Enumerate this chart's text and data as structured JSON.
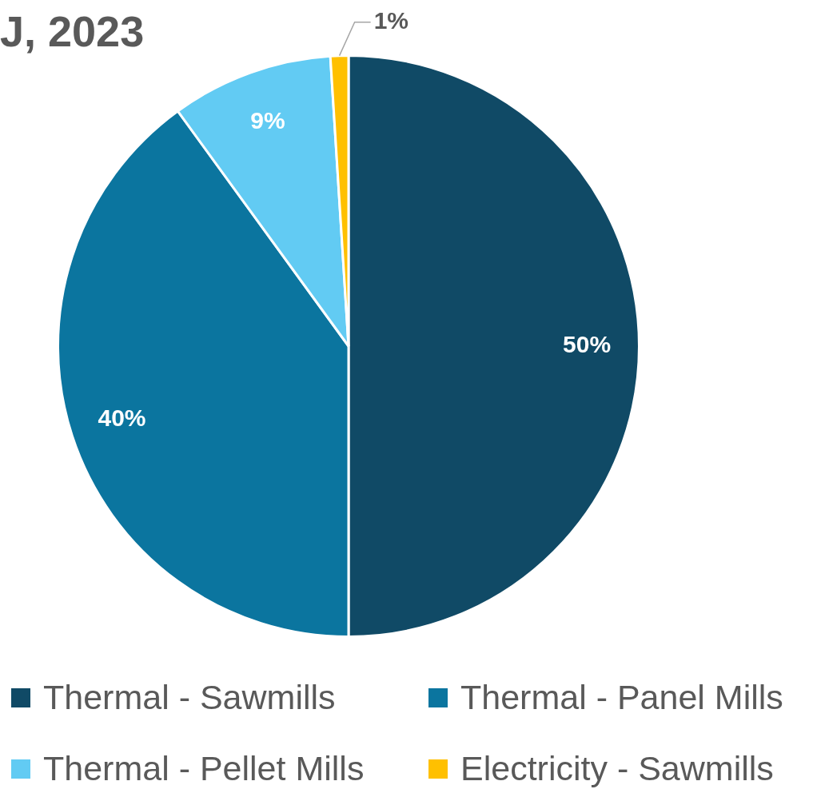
{
  "chart_data": {
    "type": "pie",
    "title": "J, 2023",
    "categories": [
      "Thermal - Sawmills",
      "Thermal - Panel Mills",
      "Thermal - Pellet Mills",
      "Electricity - Sawmills"
    ],
    "values": [
      50,
      40,
      9,
      1
    ],
    "colors": [
      "#104a66",
      "#0b759f",
      "#62cbf3",
      "#ffc000"
    ],
    "value_labels": [
      "50%",
      "40%",
      "9%",
      "1%"
    ],
    "legend": "bottom"
  }
}
